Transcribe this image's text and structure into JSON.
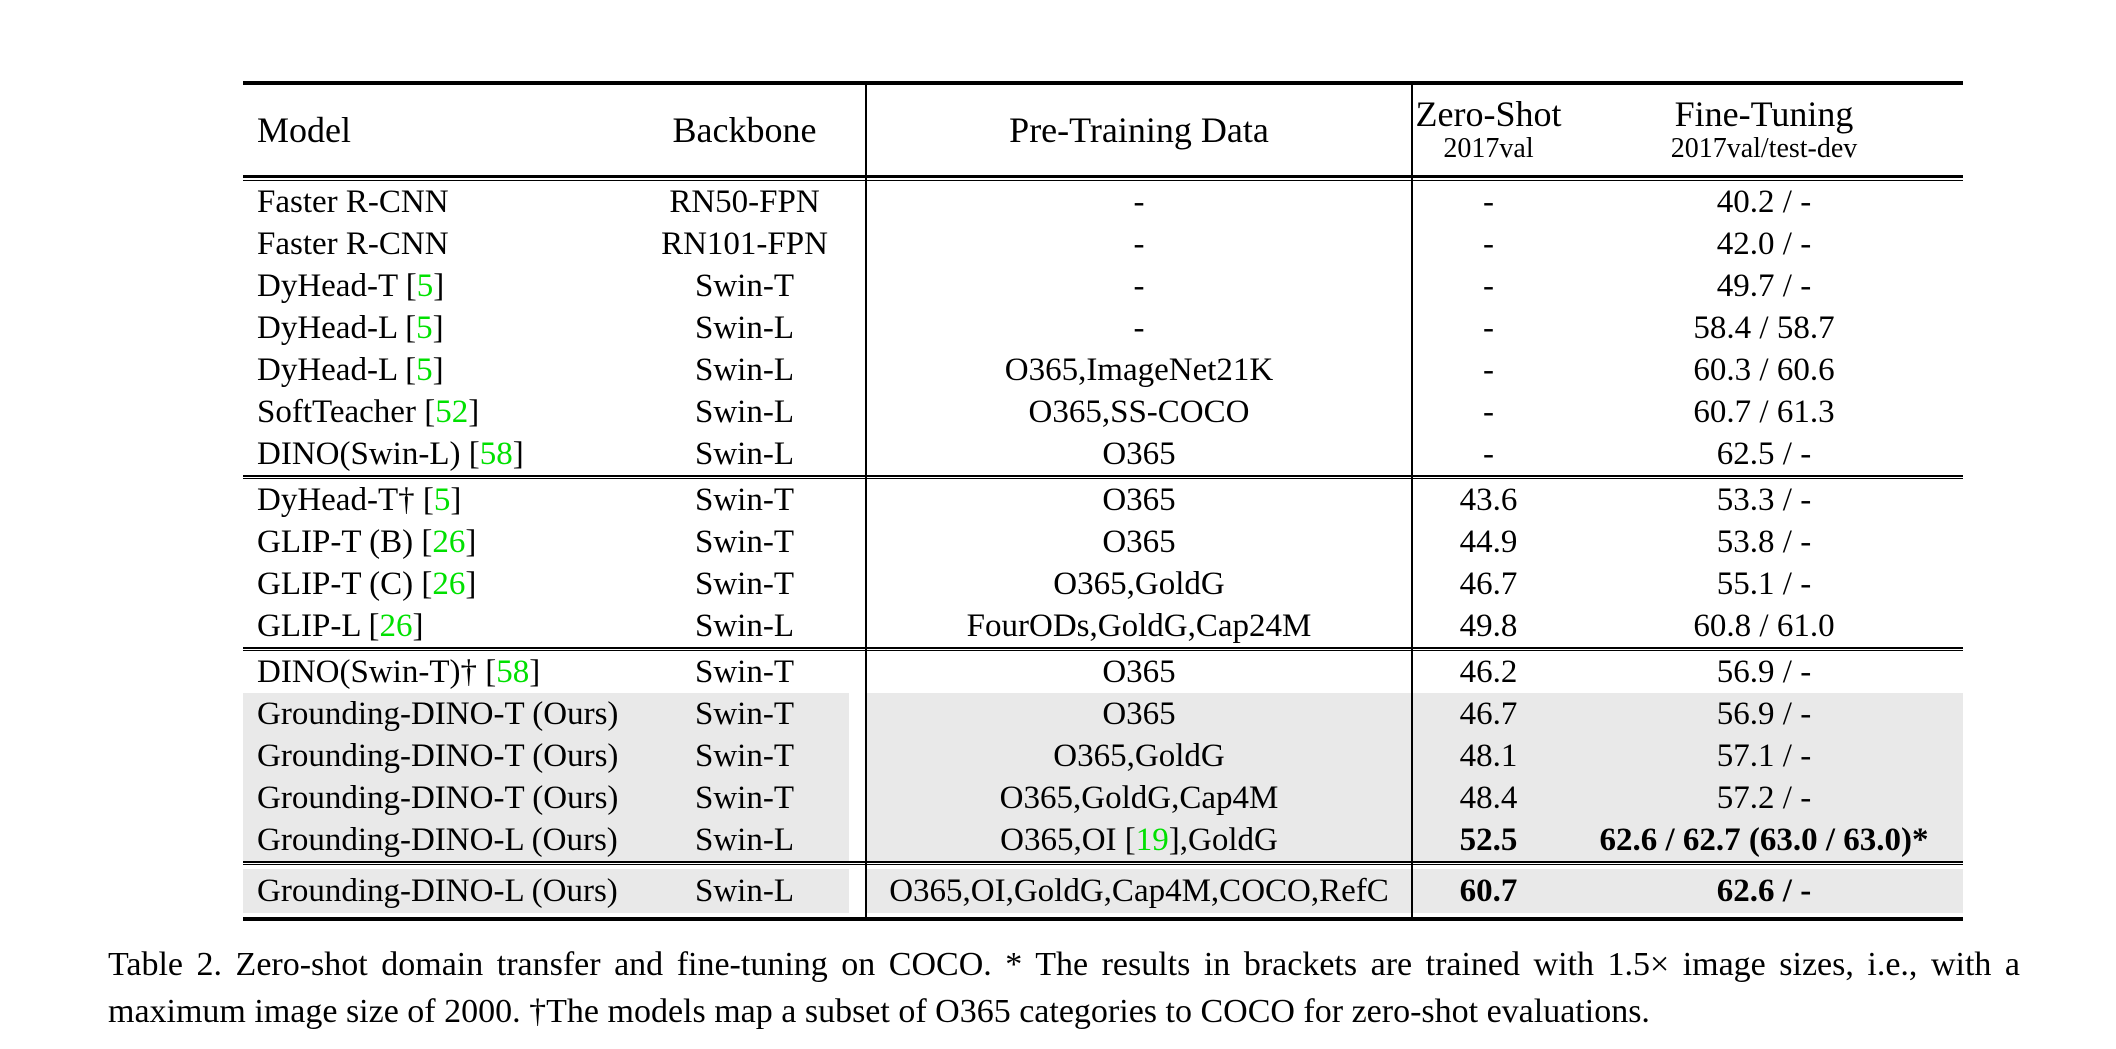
{
  "colors": {
    "cite_green": "#00e000",
    "row_highlight": "#e9e9e9",
    "rule_black": "#000000"
  },
  "header": {
    "model": "Model",
    "backbone": "Backbone",
    "pretraining": "Pre-Training Data",
    "zero_shot": {
      "title": "Zero-Shot",
      "subtitle": "2017val"
    },
    "fine_tuning": {
      "title": "Fine-Tuning",
      "subtitle": "2017val/test-dev"
    }
  },
  "groups": [
    {
      "detached": false,
      "rows": [
        {
          "model": [
            {
              "t": "Faster R-CNN"
            }
          ],
          "backbone": "RN50-FPN",
          "pretrain": [
            {
              "t": "-"
            }
          ],
          "zs": "-",
          "ft": "40.2 / -",
          "hl": false,
          "bold": false
        },
        {
          "model": [
            {
              "t": "Faster R-CNN"
            }
          ],
          "backbone": "RN101-FPN",
          "pretrain": [
            {
              "t": "-"
            }
          ],
          "zs": "-",
          "ft": "42.0 / -",
          "hl": false,
          "bold": false
        },
        {
          "model": [
            {
              "t": "DyHead-T ["
            },
            {
              "c": "5"
            },
            {
              "t": "]"
            }
          ],
          "backbone": "Swin-T",
          "pretrain": [
            {
              "t": "-"
            }
          ],
          "zs": "-",
          "ft": "49.7 / -",
          "hl": false,
          "bold": false
        },
        {
          "model": [
            {
              "t": "DyHead-L ["
            },
            {
              "c": "5"
            },
            {
              "t": "]"
            }
          ],
          "backbone": "Swin-L",
          "pretrain": [
            {
              "t": "-"
            }
          ],
          "zs": "-",
          "ft": "58.4 / 58.7",
          "hl": false,
          "bold": false
        },
        {
          "model": [
            {
              "t": "DyHead-L ["
            },
            {
              "c": "5"
            },
            {
              "t": "]"
            }
          ],
          "backbone": "Swin-L",
          "pretrain": [
            {
              "t": "O365,ImageNet21K"
            }
          ],
          "zs": "-",
          "ft": "60.3 / 60.6",
          "hl": false,
          "bold": false
        },
        {
          "model": [
            {
              "t": "SoftTeacher ["
            },
            {
              "c": "52"
            },
            {
              "t": "]"
            }
          ],
          "backbone": "Swin-L",
          "pretrain": [
            {
              "t": "O365,SS-COCO"
            }
          ],
          "zs": "-",
          "ft": "60.7 / 61.3",
          "hl": false,
          "bold": false
        },
        {
          "model": [
            {
              "t": "DINO(Swin-L) ["
            },
            {
              "c": "58"
            },
            {
              "t": "]"
            }
          ],
          "backbone": "Swin-L",
          "pretrain": [
            {
              "t": "O365"
            }
          ],
          "zs": "-",
          "ft": "62.5 / -",
          "hl": false,
          "bold": false
        }
      ]
    },
    {
      "detached": false,
      "rows": [
        {
          "model": [
            {
              "t": "DyHead-T† ["
            },
            {
              "c": "5"
            },
            {
              "t": "]"
            }
          ],
          "backbone": "Swin-T",
          "pretrain": [
            {
              "t": "O365"
            }
          ],
          "zs": "43.6",
          "ft": "53.3 / -",
          "hl": false,
          "bold": false
        },
        {
          "model": [
            {
              "t": "GLIP-T (B) ["
            },
            {
              "c": "26"
            },
            {
              "t": "]"
            }
          ],
          "backbone": "Swin-T",
          "pretrain": [
            {
              "t": "O365"
            }
          ],
          "zs": "44.9",
          "ft": "53.8 / -",
          "hl": false,
          "bold": false
        },
        {
          "model": [
            {
              "t": "GLIP-T (C) ["
            },
            {
              "c": "26"
            },
            {
              "t": "]"
            }
          ],
          "backbone": "Swin-T",
          "pretrain": [
            {
              "t": "O365,GoldG"
            }
          ],
          "zs": "46.7",
          "ft": "55.1 / -",
          "hl": false,
          "bold": false
        },
        {
          "model": [
            {
              "t": "GLIP-L ["
            },
            {
              "c": "26"
            },
            {
              "t": "]"
            }
          ],
          "backbone": "Swin-L",
          "pretrain": [
            {
              "t": "FourODs,GoldG,Cap24M"
            }
          ],
          "zs": "49.8",
          "ft": "60.8 / 61.0",
          "hl": false,
          "bold": false
        }
      ]
    },
    {
      "detached": false,
      "rows": [
        {
          "model": [
            {
              "t": "DINO(Swin-T)† ["
            },
            {
              "c": "58"
            },
            {
              "t": "]"
            }
          ],
          "backbone": "Swin-T",
          "pretrain": [
            {
              "t": "O365"
            }
          ],
          "zs": "46.2",
          "ft": "56.9 / -",
          "hl": false,
          "bold": false
        },
        {
          "model": [
            {
              "t": "Grounding-DINO-T (Ours)"
            }
          ],
          "backbone": "Swin-T",
          "pretrain": [
            {
              "t": "O365"
            }
          ],
          "zs": "46.7",
          "ft": "56.9 / -",
          "hl": true,
          "bold": false
        },
        {
          "model": [
            {
              "t": "Grounding-DINO-T (Ours)"
            }
          ],
          "backbone": "Swin-T",
          "pretrain": [
            {
              "t": "O365,GoldG"
            }
          ],
          "zs": "48.1",
          "ft": "57.1 / -",
          "hl": true,
          "bold": false
        },
        {
          "model": [
            {
              "t": "Grounding-DINO-T (Ours)"
            }
          ],
          "backbone": "Swin-T",
          "pretrain": [
            {
              "t": "O365,GoldG,Cap4M"
            }
          ],
          "zs": "48.4",
          "ft": "57.2 / -",
          "hl": true,
          "bold": false
        },
        {
          "model": [
            {
              "t": "Grounding-DINO-L (Ours)"
            }
          ],
          "backbone": "Swin-L",
          "pretrain": [
            {
              "t": "O365,OI ["
            },
            {
              "c": "19"
            },
            {
              "t": "],GoldG"
            }
          ],
          "zs": "52.5",
          "ft": "62.6 / 62.7 (63.0 / 63.0)*",
          "hl": true,
          "bold": true
        }
      ]
    },
    {
      "detached": true,
      "rows": [
        {
          "model": [
            {
              "t": "Grounding-DINO-L (Ours)"
            }
          ],
          "backbone": "Swin-L",
          "pretrain": [
            {
              "t": "O365,OI,GoldG,Cap4M,COCO,RefC"
            }
          ],
          "zs": "60.7",
          "ft": "62.6 / -",
          "hl": true,
          "bold": true
        }
      ]
    }
  ],
  "caption": "Table 2.  Zero-shot domain transfer and fine-tuning on COCO. * The results in brackets are trained with 1.5× image sizes, i.e., with a maximum image size of 2000. †The models map a subset of O365 categories to COCO for zero-shot evaluations."
}
